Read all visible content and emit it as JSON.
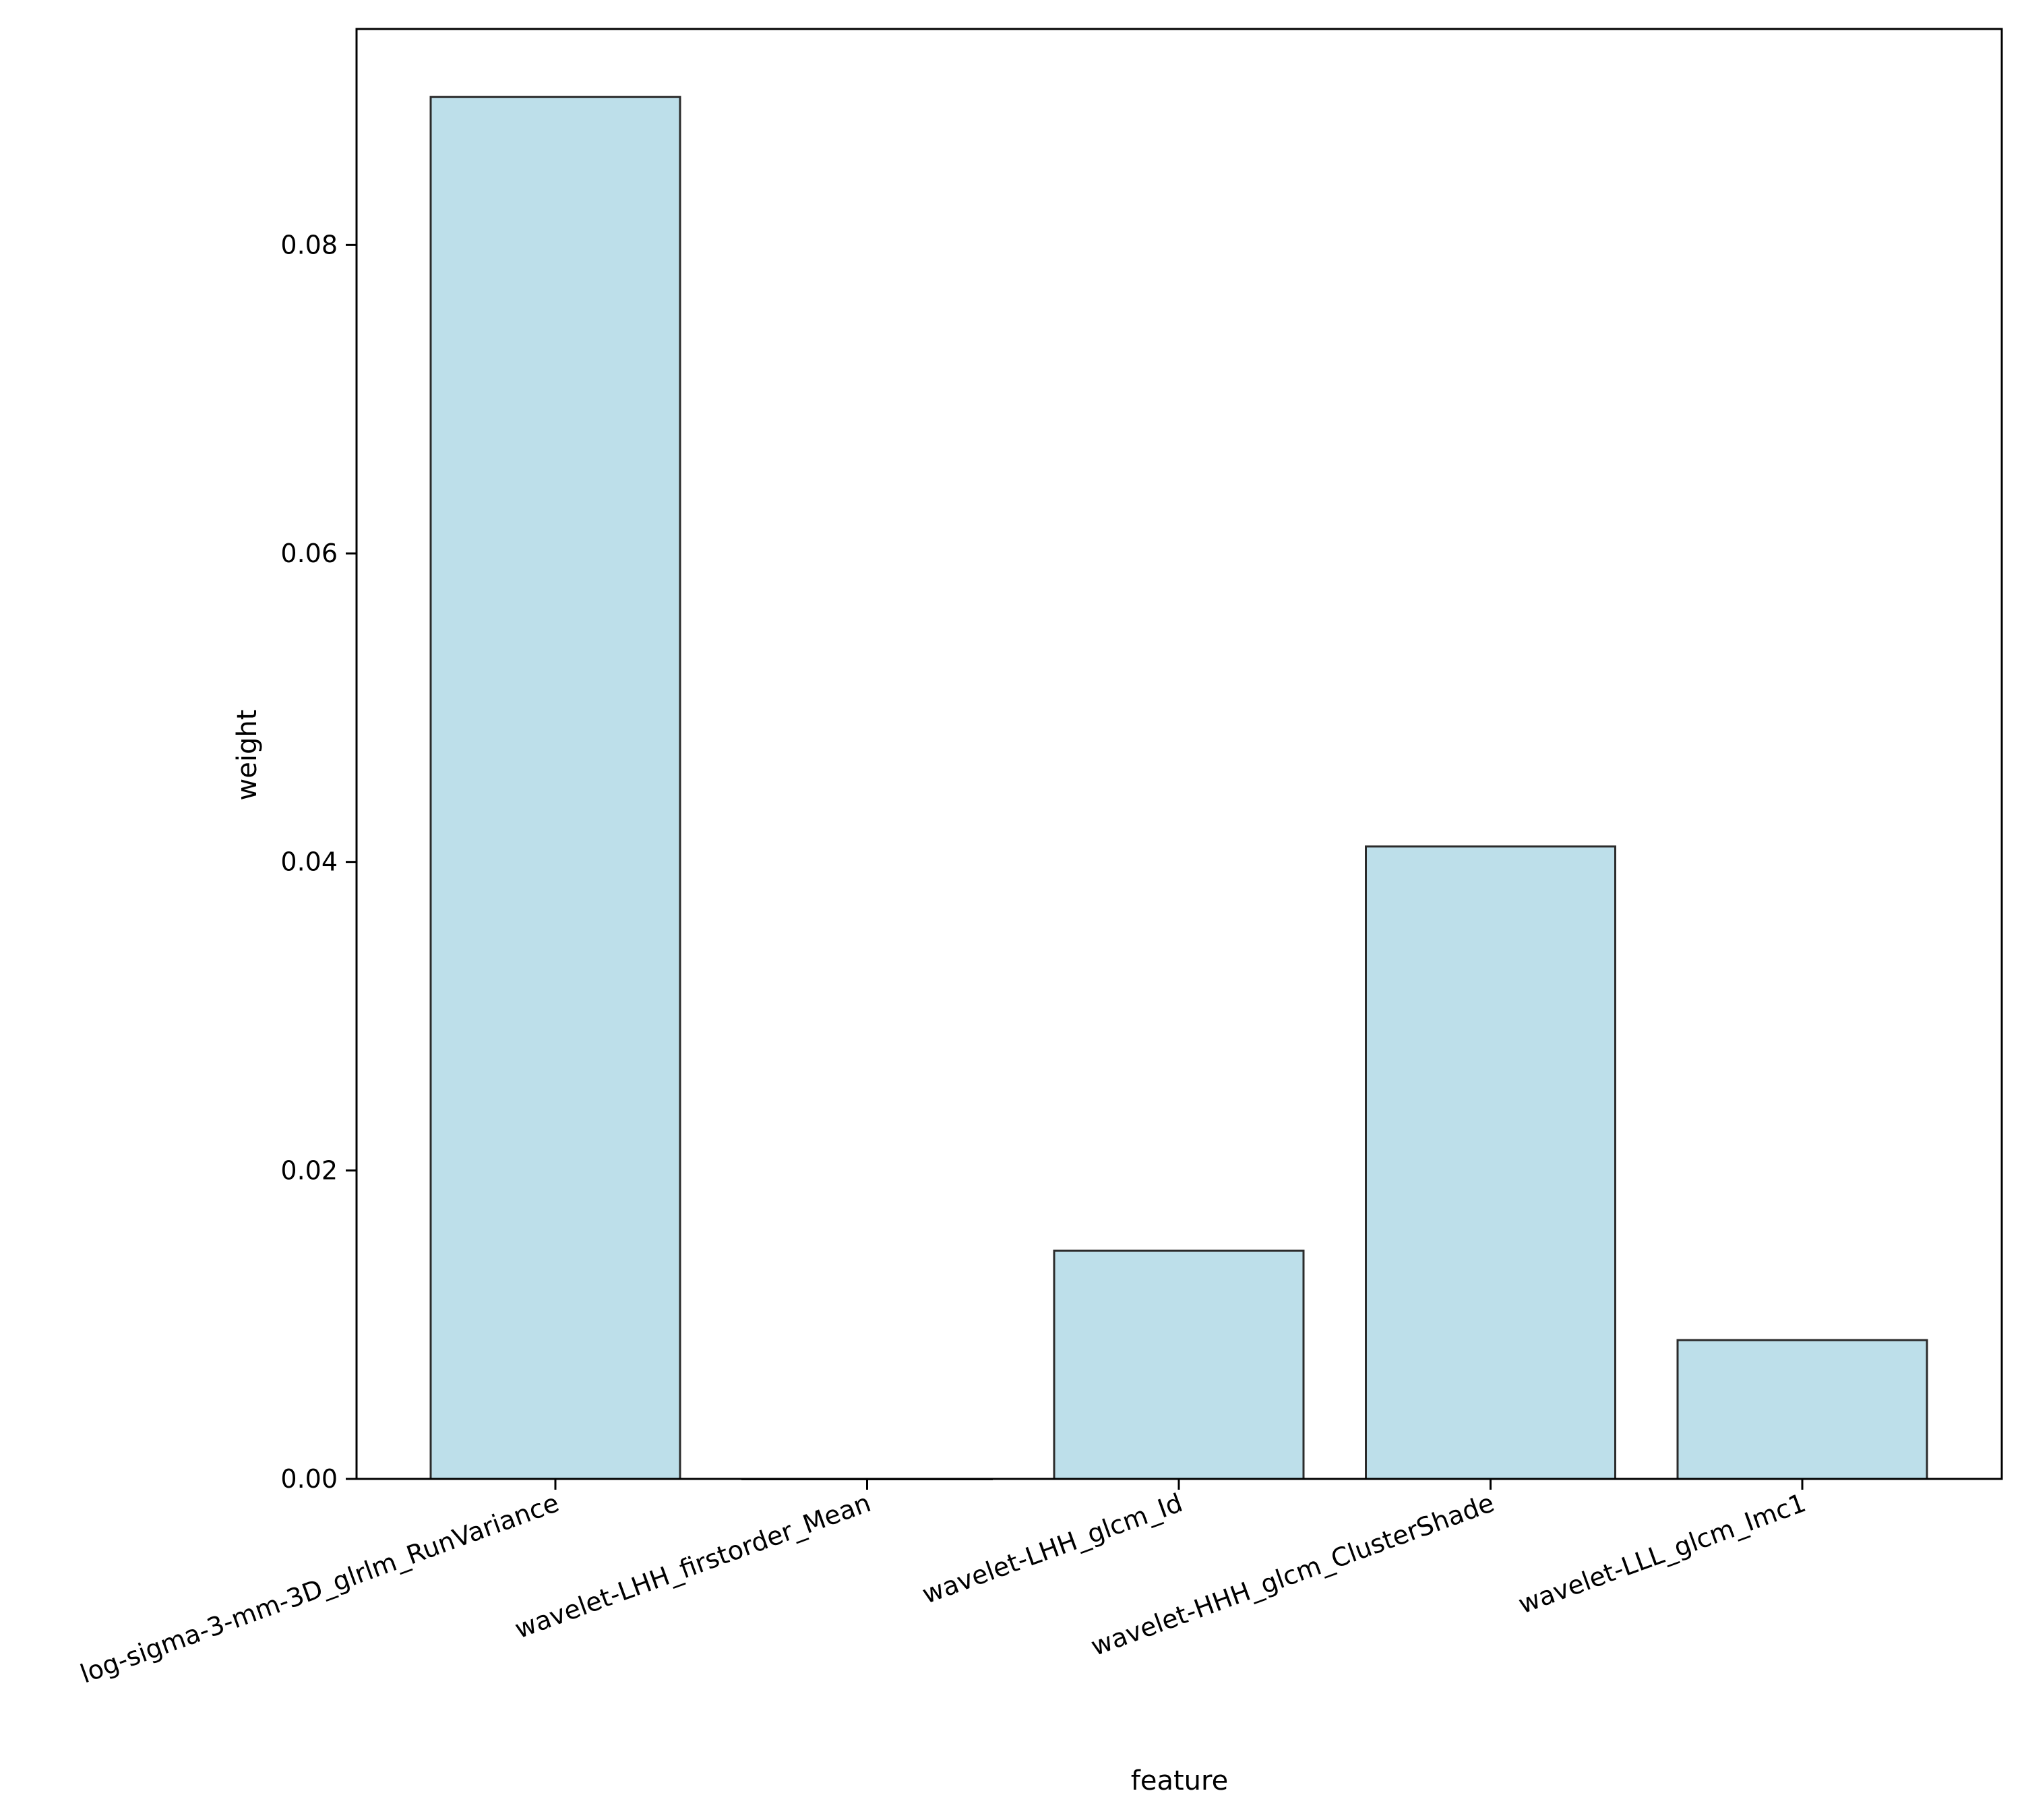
{
  "chart_data": {
    "type": "bar",
    "title": "",
    "xlabel": "feature",
    "ylabel": "weight",
    "categories": [
      "log-sigma-3-mm-3D_glrlm_RunVariance",
      "wavelet-LHH_firstorder_Mean",
      "wavelet-LHH_glcm_Id",
      "wavelet-HHH_glcm_ClusterShade",
      "wavelet-LLL_glcm_Imc1"
    ],
    "values": [
      0.0896,
      0.0,
      0.0148,
      0.041,
      0.009
    ],
    "ylim": [
      0,
      0.094
    ],
    "yticks": [
      0.0,
      0.02,
      0.04,
      0.06,
      0.08
    ],
    "ytick_labels": [
      "0.00",
      "0.02",
      "0.04",
      "0.06",
      "0.08"
    ],
    "grid": false,
    "legend": "none",
    "colors": {
      "bar_fill": "#bddfea",
      "bar_edge": "#2b2b2b",
      "axes": "#000000"
    }
  }
}
